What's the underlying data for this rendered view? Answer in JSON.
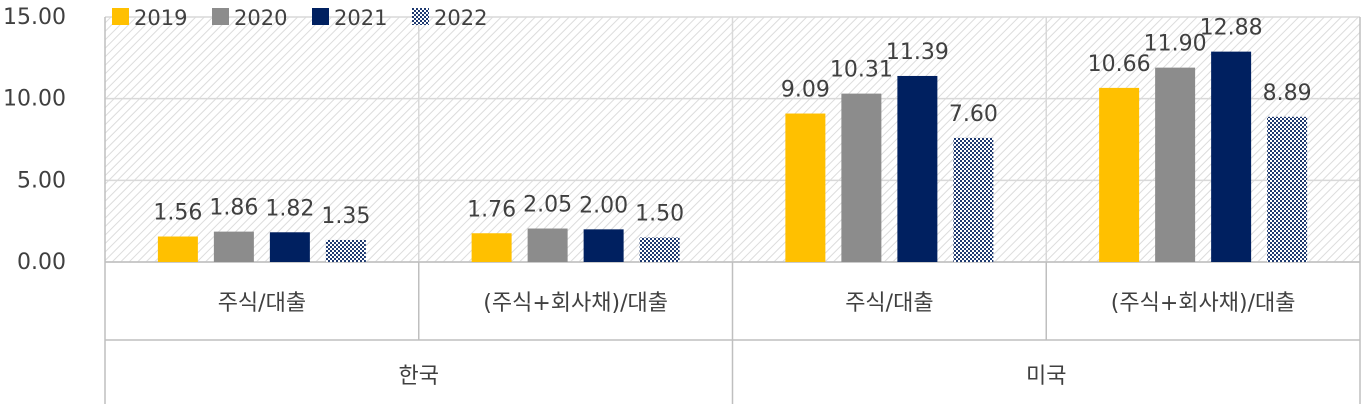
{
  "chart_data": {
    "type": "bar",
    "groups": [
      {
        "name": "한국",
        "categories": [
          "주식/대출",
          "(주식+회사채)/대출"
        ]
      },
      {
        "name": "미국",
        "categories": [
          "주식/대출",
          "(주식+회사채)/대출"
        ]
      }
    ],
    "series": [
      {
        "name": "2019",
        "color": "#FFC000",
        "values": [
          1.56,
          1.76,
          9.09,
          10.66
        ],
        "labels": [
          "1.56",
          "1.76",
          "9.09",
          "10.66"
        ]
      },
      {
        "name": "2020",
        "color": "#8C8C8C",
        "values": [
          1.86,
          2.05,
          10.31,
          11.9
        ],
        "labels": [
          "1.86",
          "2.05",
          "10.31",
          "11.90"
        ]
      },
      {
        "name": "2021",
        "color": "#002060",
        "values": [
          1.82,
          2.0,
          11.39,
          12.88
        ],
        "labels": [
          "1.82",
          "2.00",
          "11.39",
          "12.88"
        ]
      },
      {
        "name": "2022",
        "color": "#1F3A70",
        "pattern": "checker",
        "values": [
          1.35,
          1.5,
          7.6,
          8.89
        ],
        "labels": [
          "1.35",
          "1.50",
          "7.60",
          "8.89"
        ]
      }
    ],
    "y_ticks": [
      "0.00",
      "5.00",
      "10.00",
      "15.00"
    ],
    "ylim": [
      0,
      15
    ],
    "grid": true,
    "legend": "top-left"
  }
}
